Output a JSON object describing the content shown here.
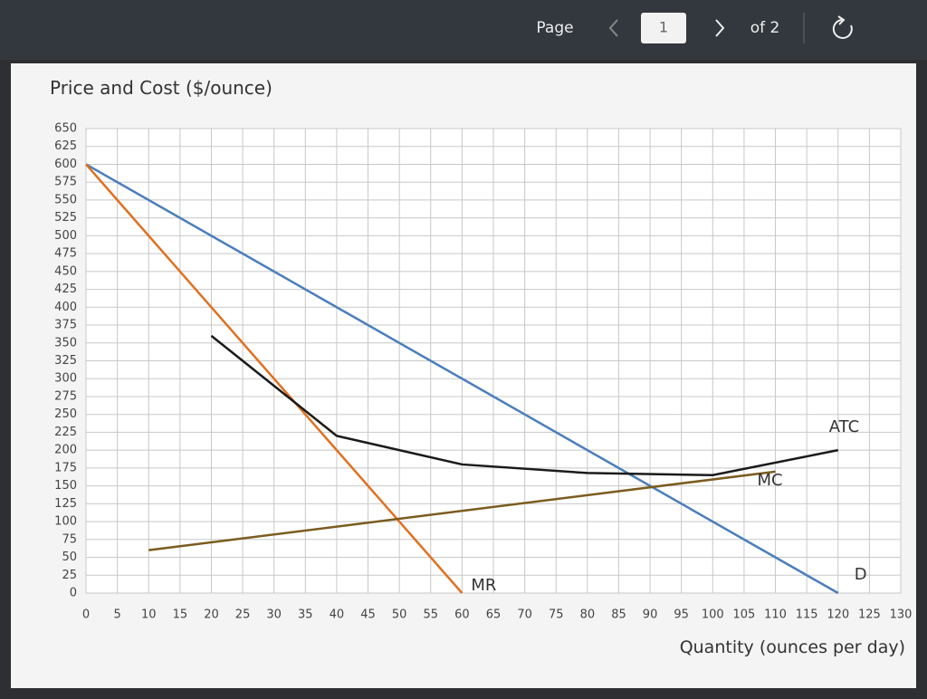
{
  "toolbar": {
    "page_label": "Page",
    "page_number": "1",
    "page_total": "of 2"
  },
  "chart_data": {
    "type": "line",
    "y_label": "Price and Cost ($/ounce)",
    "x_label": "Quantity (ounces per day)",
    "xlim": [
      0,
      130
    ],
    "ylim": [
      0,
      650
    ],
    "xticks": [
      0,
      5,
      10,
      15,
      20,
      25,
      30,
      35,
      40,
      45,
      50,
      55,
      60,
      65,
      70,
      75,
      80,
      85,
      90,
      95,
      100,
      105,
      110,
      115,
      120,
      125,
      130
    ],
    "yticks": [
      0,
      25,
      50,
      75,
      100,
      125,
      150,
      175,
      200,
      225,
      250,
      275,
      300,
      325,
      350,
      375,
      400,
      425,
      450,
      475,
      500,
      525,
      550,
      575,
      600,
      625,
      650
    ],
    "grid": true,
    "series": [
      {
        "name": "D",
        "color": "#4a7ebb",
        "x": [
          0,
          120
        ],
        "values": [
          600,
          0
        ]
      },
      {
        "name": "MR",
        "color": "#e0701f",
        "x": [
          0,
          60
        ],
        "values": [
          600,
          0
        ]
      },
      {
        "name": "MC",
        "color": "#7a5c1e",
        "x": [
          10,
          110
        ],
        "values": [
          60,
          170
        ]
      },
      {
        "name": "ATC",
        "color": "#1a1a1a",
        "x": [
          20,
          40,
          60,
          80,
          100,
          120
        ],
        "values": [
          360,
          220,
          180,
          168,
          165,
          200
        ]
      }
    ]
  }
}
